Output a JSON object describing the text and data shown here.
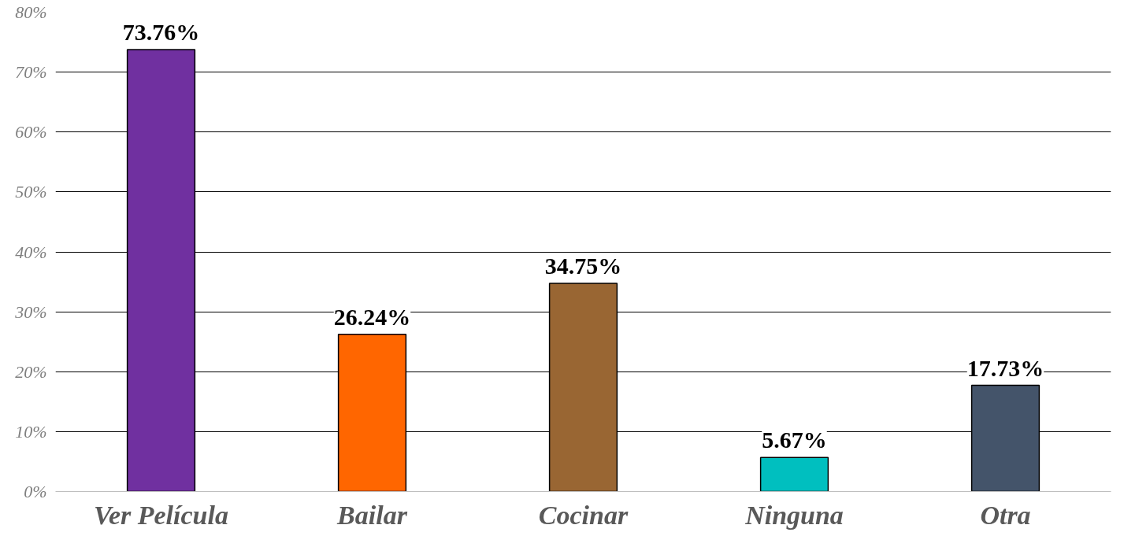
{
  "chart_data": {
    "type": "bar",
    "categories": [
      "Ver Película",
      "Bailar",
      "Cocinar",
      "Ninguna",
      "Otra"
    ],
    "values": [
      73.76,
      26.24,
      34.75,
      5.67,
      17.73
    ],
    "colors": [
      "#7030a0",
      "#ff6600",
      "#996633",
      "#00bfbf",
      "#44546a"
    ],
    "value_labels": [
      "73.76%",
      "26.24%",
      "34.75%",
      "5.67%",
      "17.73%"
    ],
    "ylim": [
      0,
      80
    ],
    "yticks": [
      {
        "value": 0,
        "label": "0%"
      },
      {
        "value": 10,
        "label": "10%"
      },
      {
        "value": 20,
        "label": "20%"
      },
      {
        "value": 30,
        "label": "30%"
      },
      {
        "value": 40,
        "label": "40%"
      },
      {
        "value": 50,
        "label": "50%"
      },
      {
        "value": 60,
        "label": "60%"
      },
      {
        "value": 70,
        "label": "70%"
      },
      {
        "value": 80,
        "label": "80%"
      }
    ],
    "grid": "y"
  }
}
